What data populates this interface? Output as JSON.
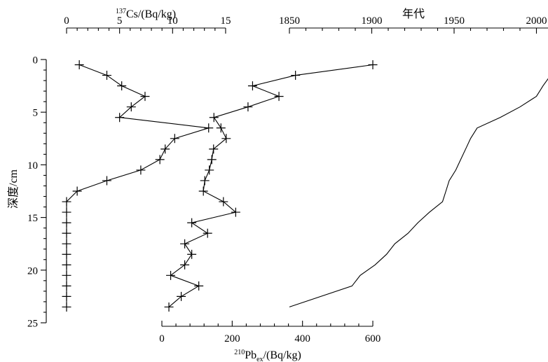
{
  "chart_data": {
    "type": "line",
    "ylabel": "深度/cm",
    "y_axis": {
      "range": [
        0,
        25
      ],
      "reversed": true,
      "ticks": [
        "0",
        "5",
        "10",
        "15",
        "20",
        "25"
      ]
    },
    "axes": {
      "cs": {
        "label": "¹³⁷Cs/(Bq/kg)",
        "label_sup": "137",
        "label_rest": "Cs/(Bq/kg)",
        "position": "top",
        "range": [
          0,
          15
        ],
        "ticks": [
          "0",
          "5",
          "10",
          "15"
        ]
      },
      "year": {
        "label": "年代",
        "position": "top",
        "range": [
          1850,
          2000
        ],
        "ticks": [
          "1850",
          "1900",
          "1950",
          "2000"
        ]
      },
      "pb": {
        "label": "²¹⁰Pbex/(Bq/kg)",
        "label_sup": "210",
        "label_mid": "Pb",
        "label_sub": "ex",
        "label_rest": "/(Bq/kg)",
        "position": "bottom",
        "range": [
          0,
          600
        ],
        "ticks": [
          "0",
          "200",
          "400",
          "600"
        ]
      }
    },
    "series": [
      {
        "key": "cs",
        "axis": "cs",
        "marker": "plus",
        "points": [
          [
            1.2,
            0.5
          ],
          [
            3.8,
            1.5
          ],
          [
            5.2,
            2.5
          ],
          [
            7.4,
            3.5
          ],
          [
            6.1,
            4.5
          ],
          [
            5.0,
            5.5
          ],
          [
            13.4,
            6.5
          ],
          [
            10.2,
            7.5
          ],
          [
            9.3,
            8.5
          ],
          [
            8.8,
            9.5
          ],
          [
            7.0,
            10.5
          ],
          [
            3.8,
            11.5
          ],
          [
            1.0,
            12.5
          ],
          [
            0,
            13.5
          ],
          [
            0,
            14.5
          ],
          [
            0,
            15.5
          ],
          [
            0,
            16.5
          ],
          [
            0,
            17.5
          ],
          [
            0,
            18.5
          ],
          [
            0,
            19.5
          ],
          [
            0,
            20.5
          ],
          [
            0,
            21.5
          ],
          [
            0,
            22.5
          ],
          [
            0,
            23.5
          ]
        ]
      },
      {
        "key": "pb",
        "axis": "pb",
        "marker": "plus",
        "points": [
          [
            600,
            0.5
          ],
          [
            380,
            1.5
          ],
          [
            258,
            2.5
          ],
          [
            333,
            3.5
          ],
          [
            245,
            4.5
          ],
          [
            148,
            5.5
          ],
          [
            168,
            6.5
          ],
          [
            183,
            7.5
          ],
          [
            147,
            8.5
          ],
          [
            142,
            9.5
          ],
          [
            135,
            10.5
          ],
          [
            122,
            11.5
          ],
          [
            118,
            12.5
          ],
          [
            175,
            13.5
          ],
          [
            210,
            14.5
          ],
          [
            85,
            15.5
          ],
          [
            130,
            16.5
          ],
          [
            65,
            17.5
          ],
          [
            85,
            18.5
          ],
          [
            65,
            19.5
          ],
          [
            25,
            20.5
          ],
          [
            105,
            21.5
          ],
          [
            55,
            22.5
          ],
          [
            20,
            23.5
          ]
        ]
      },
      {
        "key": "year",
        "axis": "year",
        "marker": "none",
        "points": [
          [
            2010,
            1.2
          ],
          [
            2004,
            2.5
          ],
          [
            2000,
            3.5
          ],
          [
            1990,
            4.5
          ],
          [
            1978,
            5.5
          ],
          [
            1964,
            6.5
          ],
          [
            1960,
            7.5
          ],
          [
            1957,
            8.5
          ],
          [
            1954,
            9.5
          ],
          [
            1951,
            10.5
          ],
          [
            1947,
            11.5
          ],
          [
            1945,
            12.5
          ],
          [
            1943,
            13.5
          ],
          [
            1935,
            14.5
          ],
          [
            1928,
            15.5
          ],
          [
            1922,
            16.5
          ],
          [
            1914,
            17.5
          ],
          [
            1909,
            18.5
          ],
          [
            1902,
            19.5
          ],
          [
            1893,
            20.5
          ],
          [
            1888,
            21.5
          ],
          [
            1850,
            23.5
          ]
        ]
      }
    ]
  }
}
